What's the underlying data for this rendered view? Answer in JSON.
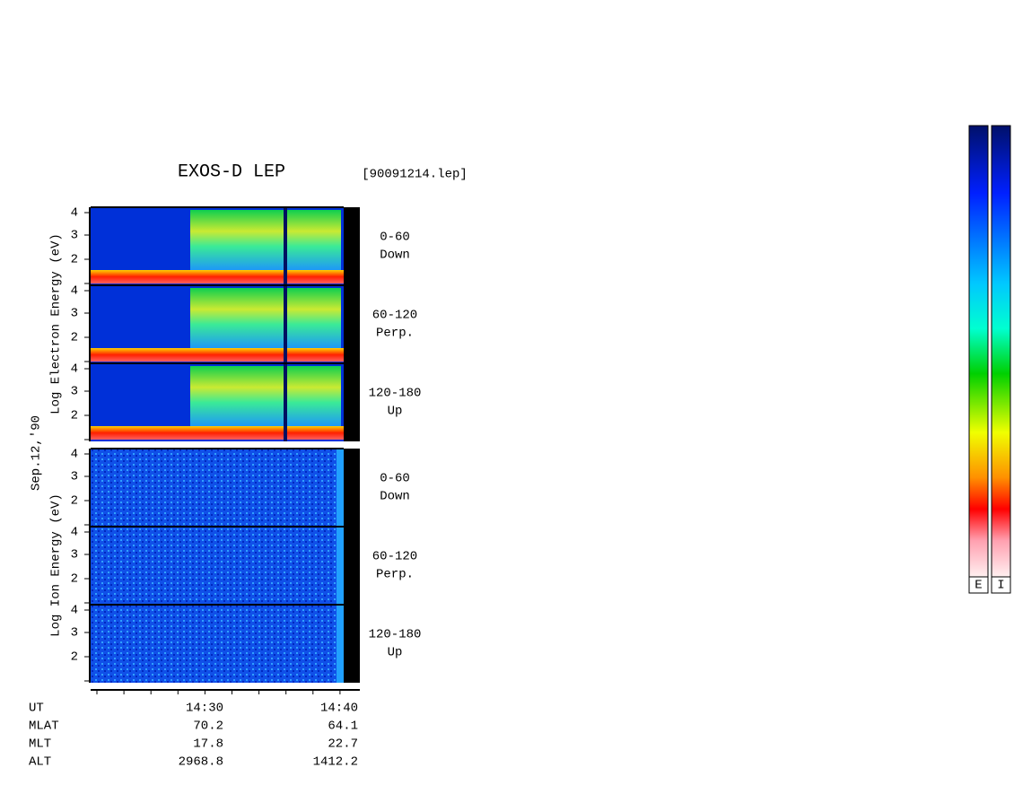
{
  "header": {
    "title": "EXOS-D LEP",
    "file": "[90091214.lep]"
  },
  "date": "Sep.12,'90",
  "groups": [
    {
      "ylabel": "Log  Electron  Energy (eV)",
      "panels": [
        {
          "ticks": [
            4,
            3,
            2
          ],
          "angle": "0-60",
          "direction": "Down"
        },
        {
          "ticks": [
            4,
            3,
            2
          ],
          "angle": "60-120",
          "direction": "Perp."
        },
        {
          "ticks": [
            4,
            3,
            2
          ],
          "angle": "120-180",
          "direction": "Up"
        }
      ]
    },
    {
      "ylabel": "Log  Ion  Energy (eV)",
      "panels": [
        {
          "ticks": [
            4,
            3,
            2
          ],
          "angle": "0-60",
          "direction": "Down"
        },
        {
          "ticks": [
            4,
            3,
            2
          ],
          "angle": "60-120",
          "direction": "Perp."
        },
        {
          "ticks": [
            4,
            3,
            2
          ],
          "angle": "120-180",
          "direction": "Up"
        }
      ]
    }
  ],
  "time_table": {
    "rows": [
      {
        "label": "UT",
        "values": [
          "14:30",
          "14:40"
        ]
      },
      {
        "label": "MLAT",
        "values": [
          "70.2",
          "64.1"
        ]
      },
      {
        "label": "MLT",
        "values": [
          "17.8",
          "22.7"
        ]
      },
      {
        "label": "ALT",
        "values": [
          "2968.8",
          "1412.2"
        ]
      }
    ]
  },
  "colorbars": [
    "E",
    "I"
  ]
}
